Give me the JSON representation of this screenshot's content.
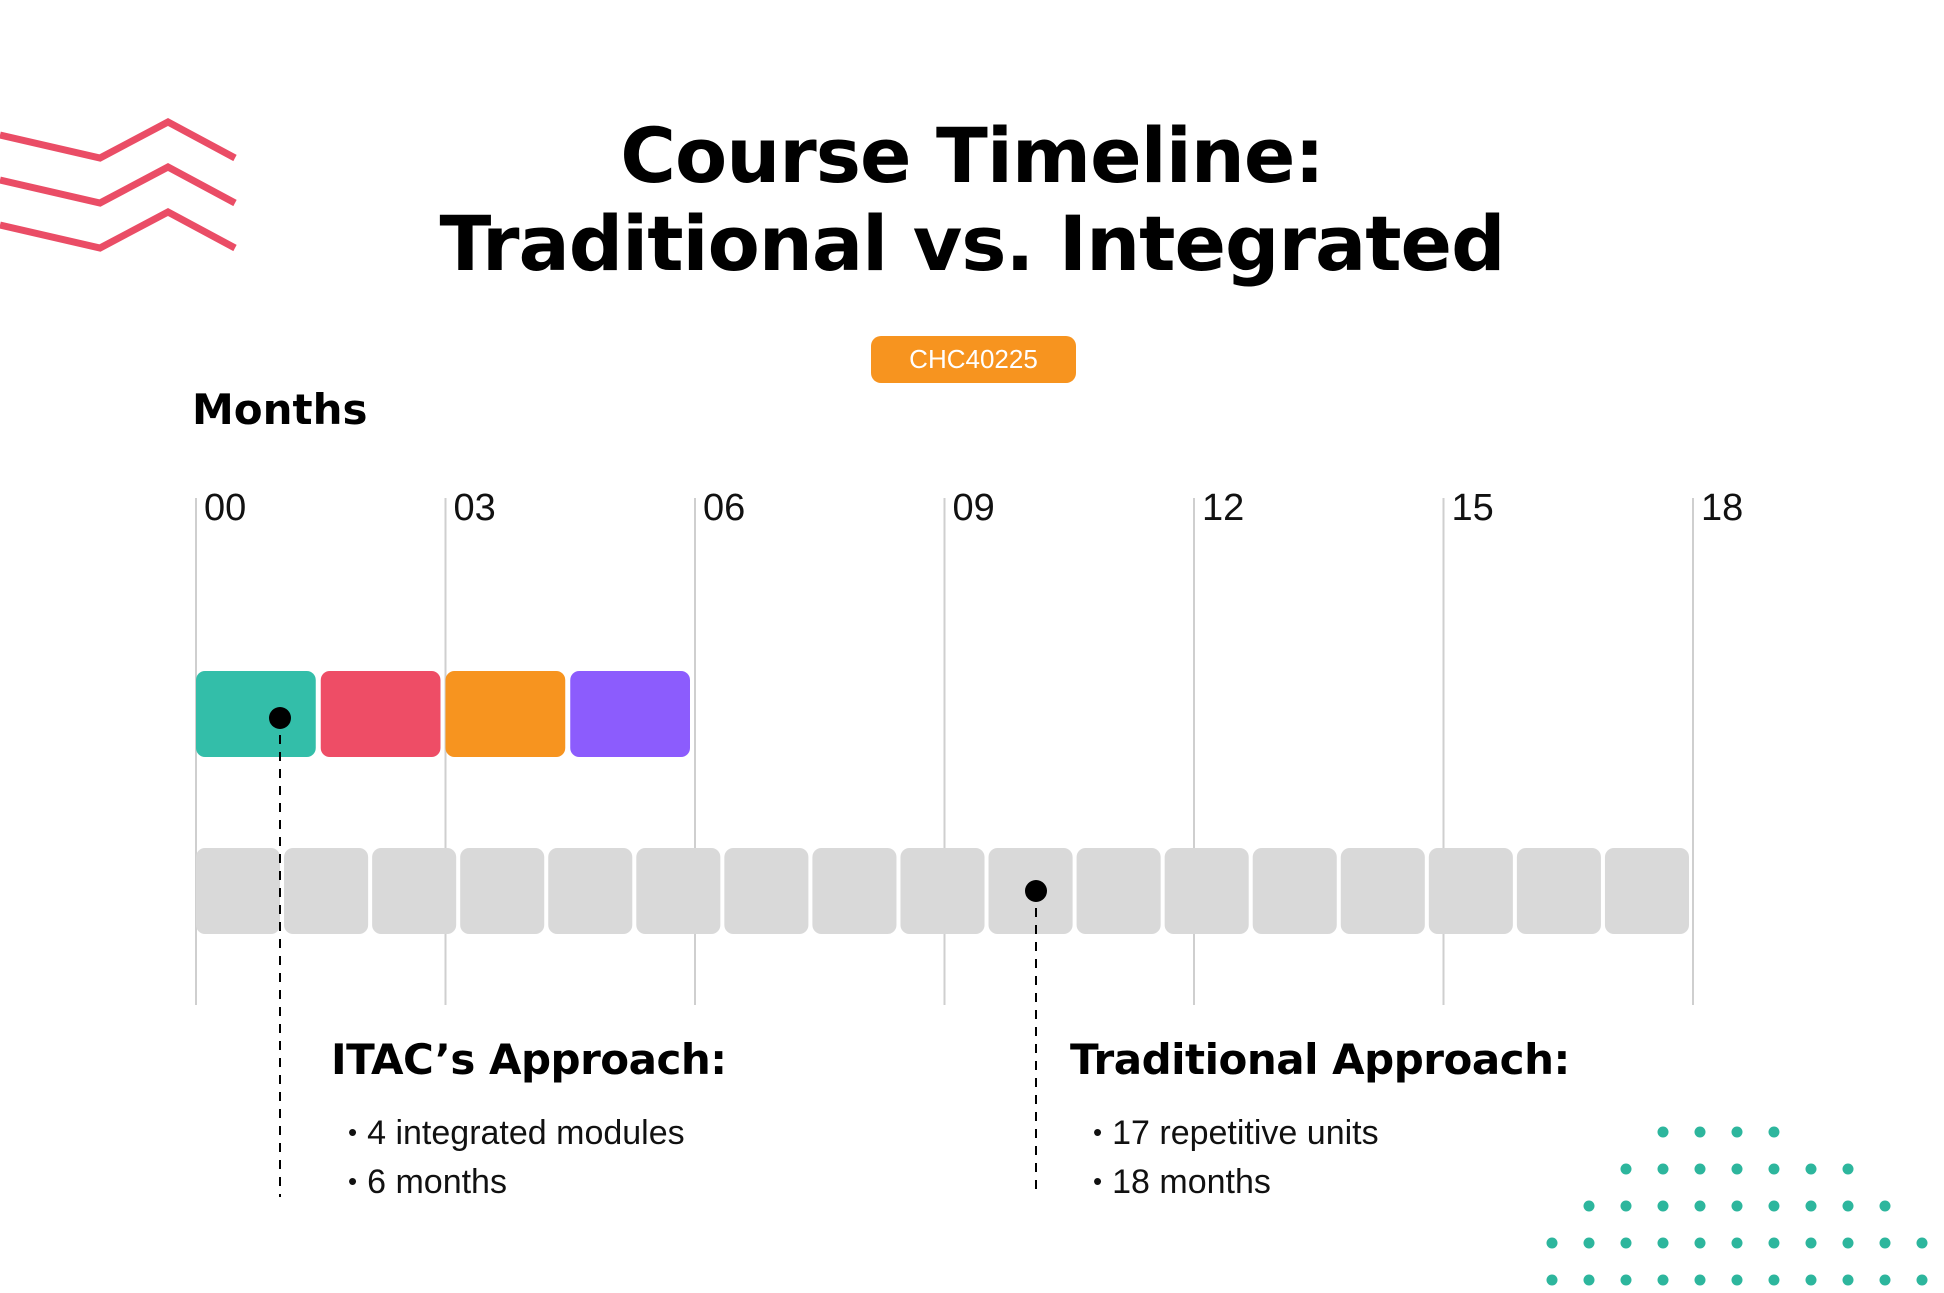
{
  "title": {
    "line1": "Course Timeline:",
    "line2": "Traditional vs. Integrated"
  },
  "badge": "CHC40225",
  "axis": {
    "label": "Months",
    "ticks": [
      "00",
      "03",
      "06",
      "09",
      "12",
      "15",
      "18"
    ]
  },
  "chart_data": {
    "type": "timeline",
    "x_unit": "months",
    "xlim": [
      0,
      18
    ],
    "series": [
      {
        "name": "ITAC's Approach",
        "block_count": 4,
        "total_months": 6,
        "block_colors": [
          "#33bea9",
          "#ee4d66",
          "#f7941f",
          "#8c5cfd"
        ]
      },
      {
        "name": "Traditional Approach",
        "block_count": 17,
        "total_months": 18,
        "block_color": "#d9d9d9"
      }
    ]
  },
  "itac": {
    "title": "ITAC’s Approach:",
    "bullets": [
      "4 integrated modules",
      "6 months"
    ]
  },
  "traditional": {
    "title": "Traditional Approach:",
    "bullets": [
      "17 repetitive units",
      "18 months"
    ]
  },
  "colors": {
    "zigzag": "#ea4d66",
    "dots": "#2db69d",
    "badge": "#f7941f",
    "gridline": "#cfcfcf"
  },
  "decor": {
    "zigzag_icon": "zigzag-lines",
    "dots_icon": "dot-pattern"
  }
}
